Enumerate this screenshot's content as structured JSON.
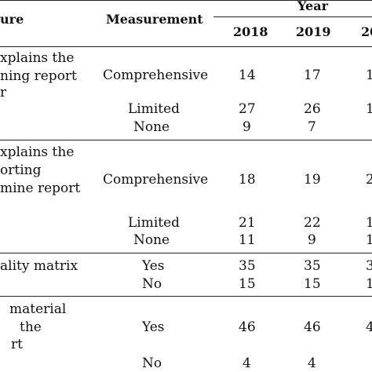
{
  "header": {
    "col_disclosure": "ure",
    "col_measurement": "Measurement",
    "col_year": "Year",
    "years": [
      "2018",
      "2019",
      "20"
    ]
  },
  "sections": [
    {
      "disclosure_lines": [
        "xplains the",
        "ning report",
        "r"
      ],
      "rows": [
        {
          "measurement": "Comprehensive",
          "v2018": "14",
          "v2019": "17",
          "v2020": "1"
        },
        {
          "measurement": "Limited",
          "v2018": "27",
          "v2019": "26",
          "v2020": "1"
        },
        {
          "measurement": "None",
          "v2018": "9",
          "v2019": "7",
          "v2020": ""
        }
      ]
    },
    {
      "disclosure_lines": [
        "xplains the",
        "orting",
        "mine report"
      ],
      "rows": [
        {
          "measurement": "Comprehensive",
          "v2018": "18",
          "v2019": "19",
          "v2020": "2"
        },
        {
          "measurement": "Limited",
          "v2018": "21",
          "v2019": "22",
          "v2020": "1"
        },
        {
          "measurement": "None",
          "v2018": "11",
          "v2019": "9",
          "v2020": "1"
        }
      ]
    },
    {
      "disclosure_lines": [
        "ality matrix"
      ],
      "rows": [
        {
          "measurement": "Yes",
          "v2018": "35",
          "v2019": "35",
          "v2020": "3"
        },
        {
          "measurement": "No",
          "v2018": "15",
          "v2019": "15",
          "v2020": "1"
        }
      ]
    },
    {
      "disclosure_lines": [
        "material",
        "the",
        "rt"
      ],
      "rows": [
        {
          "measurement": "Yes",
          "v2018": "46",
          "v2019": "46",
          "v2020": "4"
        },
        {
          "measurement": "No",
          "v2018": "4",
          "v2019": "4",
          "v2020": ""
        }
      ]
    }
  ]
}
